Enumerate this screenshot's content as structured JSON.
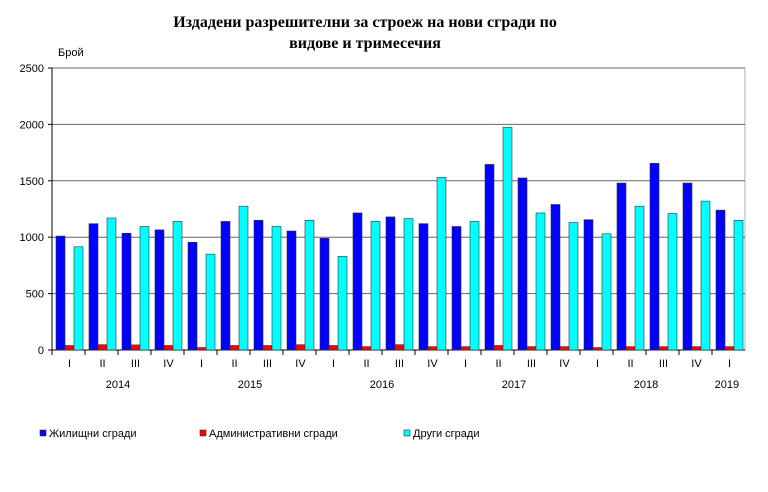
{
  "chart_data": {
    "type": "bar",
    "title_lines": [
      "Издадени разрешителни за строеж на нови сгради по",
      "видове и тримесечия"
    ],
    "ylabel": "Брой",
    "ylim": [
      0,
      2500
    ],
    "yticks": [
      0,
      500,
      1000,
      1500,
      2000,
      2500
    ],
    "grid": true,
    "legend_position": "bottom",
    "categories": [
      "I",
      "II",
      "III",
      "IV",
      "I",
      "II",
      "III",
      "IV",
      "I",
      "II",
      "III",
      "IV",
      "I",
      "II",
      "III",
      "IV",
      "I",
      "II",
      "III",
      "IV",
      "I"
    ],
    "years": [
      {
        "label": "2014",
        "quarters": 4
      },
      {
        "label": "2015",
        "quarters": 4
      },
      {
        "label": "2016",
        "quarters": 4
      },
      {
        "label": "2017",
        "quarters": 4
      },
      {
        "label": "2018",
        "quarters": 4
      },
      {
        "label": "2019",
        "quarters": 1
      }
    ],
    "series": [
      {
        "name": "Жилищни сгради",
        "color": "#0000ff",
        "values": [
          1010,
          1120,
          1035,
          1065,
          955,
          1140,
          1150,
          1055,
          990,
          1215,
          1180,
          1120,
          1095,
          1645,
          1525,
          1290,
          1155,
          1480,
          1655,
          1480,
          1240
        ]
      },
      {
        "name": "Административни сгради",
        "color": "#ff0000",
        "values": [
          40,
          47,
          45,
          40,
          22,
          40,
          40,
          47,
          40,
          30,
          47,
          30,
          30,
          40,
          30,
          30,
          22,
          30,
          30,
          30,
          30
        ]
      },
      {
        "name": "Други сгради",
        "color": "#00ffff",
        "values": [
          915,
          1170,
          1095,
          1140,
          850,
          1275,
          1095,
          1150,
          830,
          1140,
          1165,
          1530,
          1140,
          1975,
          1215,
          1130,
          1030,
          1275,
          1210,
          1320,
          1150
        ]
      }
    ]
  }
}
